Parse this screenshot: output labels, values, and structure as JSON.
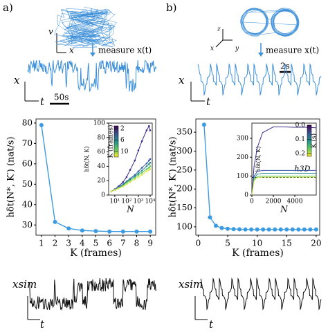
{
  "panels": {
    "a": "a)",
    "b": "b)"
  },
  "illustrations": {
    "a": {
      "phase_v": "v",
      "phase_x": "x",
      "measure": "measure x(t)",
      "series_y": "x",
      "series_t": "t",
      "scale": "50s",
      "sim": "xsim",
      "sim_t": "t"
    },
    "b": {
      "phase_z": "z",
      "phase_x": "x",
      "phase_y": "y",
      "measure": "measure x(t)",
      "series_y": "x",
      "series_t": "t",
      "scale": "2s",
      "sim": "xsim",
      "sim_t": "t"
    }
  },
  "chart_data": [
    {
      "type": "line",
      "xlabel": "K (frames)",
      "ylabel": "hδt(N*, K′) (nat/s)",
      "x": [
        1,
        2,
        3,
        4,
        5,
        6,
        7,
        8,
        9
      ],
      "series": [
        {
          "color": "#3c9be0",
          "values": [
            79,
            31.5,
            28.3,
            27.3,
            27,
            26.8,
            26.8,
            26.8,
            26.8
          ]
        }
      ],
      "xlim": [
        0.6,
        9.4
      ],
      "ylim": [
        25,
        82
      ],
      "xticks": [
        1,
        2,
        3,
        4,
        5,
        6,
        7,
        8,
        9
      ],
      "yticks": [
        30,
        40,
        50,
        60,
        70,
        80
      ],
      "markers": true
    },
    {
      "type": "line",
      "xscale": "log",
      "xlabel": "N",
      "ylabel": "hδt(N, K)",
      "x": [
        5,
        10,
        20,
        50,
        100,
        200,
        500,
        1000,
        2000,
        5000,
        8000,
        10000
      ],
      "series": [
        {
          "color": "#3b2a8a",
          "values": [
            5,
            8,
            12,
            18,
            25,
            35,
            48,
            62,
            75,
            90,
            96,
            90
          ]
        },
        {
          "color": "#3a58a8",
          "values": [
            5,
            8,
            11,
            15,
            19,
            23,
            28,
            33,
            38,
            44,
            48,
            50
          ]
        },
        {
          "color": "#2a8e8c",
          "values": [
            5,
            7,
            10,
            14,
            18,
            22,
            26,
            30,
            34,
            40,
            43,
            45
          ]
        },
        {
          "color": "#5ec962",
          "values": [
            5,
            7,
            10,
            13,
            17,
            20,
            24,
            28,
            31,
            36,
            38,
            40
          ]
        },
        {
          "color": "#d9e84a",
          "values": [
            5,
            7,
            9,
            12,
            15,
            18,
            22,
            25,
            28,
            33,
            35,
            36
          ]
        }
      ],
      "xlim": [
        3,
        15000
      ],
      "ylim": [
        0,
        100
      ],
      "xticks": [
        {
          "value": 10,
          "label": "10¹"
        },
        {
          "value": 100,
          "label": "10²"
        },
        {
          "value": 1000,
          "label": "10³"
        },
        {
          "value": 10000,
          "label": "10⁴"
        }
      ],
      "yticks": [
        0,
        20,
        40,
        60,
        80,
        100
      ],
      "markers": true,
      "colorbar": {
        "label": "K (frames)",
        "colormap": "viridis",
        "clim": [
          1,
          12
        ],
        "cticks": [
          2,
          6,
          10
        ]
      }
    },
    {
      "type": "line",
      "xlabel": "K (frames)",
      "ylabel": "hδt(N*, K′) (nat/s)",
      "x": [
        1,
        2,
        3,
        4,
        5,
        6,
        7,
        8,
        9,
        10,
        11,
        12,
        13,
        14,
        15,
        16,
        17,
        18,
        19,
        20
      ],
      "series": [
        {
          "color": "#3c9be0",
          "values": [
            370,
            125,
            103,
            97,
            95,
            94,
            93.5,
            93,
            93,
            93,
            93,
            93,
            93,
            93,
            93,
            93,
            93,
            93,
            93,
            93
          ]
        }
      ],
      "xlim": [
        -0.4,
        20.6
      ],
      "ylim": [
        78,
        385
      ],
      "xticks": [
        0,
        5,
        10,
        15,
        20
      ],
      "yticks": [
        100,
        150,
        200,
        250,
        300,
        350
      ],
      "markers": true
    },
    {
      "type": "line",
      "xlabel": "N",
      "ylabel": "hδt(N, K)",
      "annotation": "h3D",
      "hline": 93,
      "x": [
        0,
        200,
        500,
        1000,
        2000,
        3000,
        4000,
        5000,
        6000
      ],
      "series": [
        {
          "color": "#3b2a8a",
          "values": [
            0,
            150,
            250,
            330,
            360,
            360,
            358,
            358,
            355
          ]
        },
        {
          "color": "#3a58a8",
          "values": [
            0,
            100,
            125,
            130,
            130,
            130,
            130,
            130,
            130
          ]
        },
        {
          "color": "#2a8e8c",
          "values": [
            0,
            90,
            110,
            115,
            115,
            115,
            115,
            115,
            115
          ]
        },
        {
          "color": "#5ec962",
          "values": [
            0,
            80,
            98,
            100,
            100,
            100,
            100,
            100,
            100
          ]
        },
        {
          "color": "#d9e84a",
          "values": [
            0,
            75,
            92,
            95,
            95,
            95,
            95,
            95,
            95
          ]
        }
      ],
      "xlim": [
        0,
        6000
      ],
      "ylim": [
        0,
        380
      ],
      "xticks": [
        0,
        2000,
        4000
      ],
      "yticks": [
        0,
        100,
        200,
        300
      ],
      "markers": false,
      "colorbar": {
        "label": "K (s)",
        "colormap": "viridis",
        "clim": [
          0,
          0.22
        ],
        "cticks": [
          {
            "value": 0,
            "label": "0.0"
          },
          0.1,
          0.2
        ]
      }
    }
  ]
}
